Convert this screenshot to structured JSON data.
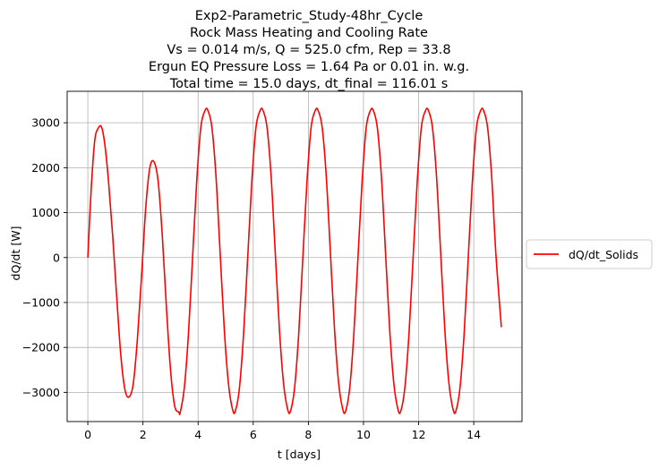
{
  "colors": {
    "series": "#ff0000",
    "grid": "#b0b0b0",
    "axis": "#000000"
  },
  "chart_data": {
    "type": "line",
    "title": [
      "Exp2-Parametric_Study-48hr_Cycle",
      "Rock Mass Heating and Cooling Rate",
      "Vs = 0.014 m/s, Q = 525.0 cfm, Rep = 33.8",
      "Ergun EQ Pressure Loss = 1.64 Pa or 0.01 in. w.g.",
      "Total time = 15.0 days, dt_final = 116.01 s"
    ],
    "xlabel": "t [days]",
    "ylabel": "dQ/dt [W]",
    "xlim": [
      -0.75,
      15.75
    ],
    "ylim": [
      -3650,
      3700
    ],
    "xticks": [
      0,
      2,
      4,
      6,
      8,
      10,
      12,
      14
    ],
    "yticks": [
      -3000,
      -2000,
      -1000,
      0,
      1000,
      2000,
      3000
    ],
    "grid": true,
    "legend": {
      "placement": "outside-right",
      "entries": [
        "dQ/dt_Solids"
      ]
    },
    "series": [
      {
        "name": "dQ/dt_Solids",
        "color": "#ff0000",
        "x": [
          0,
          0.12,
          0.25,
          0.38,
          0.5,
          0.62,
          0.75,
          0.9,
          1.05,
          1.2,
          1.35,
          1.5,
          1.65,
          1.8,
          1.95,
          2.1,
          2.25,
          2.4,
          2.55,
          2.7,
          2.85,
          3.0,
          3.15,
          3.3,
          3.35,
          3.5,
          3.65,
          3.8,
          3.95,
          4.1,
          4.25,
          4.35,
          4.5,
          4.65,
          4.8,
          4.95,
          5.1,
          5.25,
          5.35,
          5.5,
          5.65,
          5.8,
          5.95,
          6.1,
          6.25,
          6.35,
          6.5,
          6.65,
          6.8,
          6.95,
          7.1,
          7.25,
          7.35,
          7.5,
          7.65,
          7.8,
          7.95,
          8.1,
          8.25,
          8.35,
          8.5,
          8.65,
          8.8,
          8.95,
          9.1,
          9.25,
          9.35,
          9.5,
          9.65,
          9.8,
          9.95,
          10.1,
          10.25,
          10.35,
          10.5,
          10.65,
          10.8,
          10.95,
          11.1,
          11.25,
          11.35,
          11.5,
          11.65,
          11.8,
          11.95,
          12.1,
          12.25,
          12.35,
          12.5,
          12.65,
          12.8,
          12.95,
          13.1,
          13.25,
          13.35,
          13.5,
          13.65,
          13.8,
          13.95,
          14.1,
          14.25,
          14.35,
          14.5,
          14.65,
          14.8,
          15.0
        ],
        "y": [
          0,
          1500,
          2600,
          2880,
          2900,
          2500,
          1700,
          500,
          -900,
          -2200,
          -2950,
          -3100,
          -2800,
          -1800,
          -400,
          1100,
          2000,
          2130,
          1700,
          500,
          -1100,
          -2500,
          -3300,
          -3440,
          -3450,
          -2900,
          -1700,
          0,
          1700,
          2900,
          3270,
          3280,
          2900,
          1800,
          100,
          -1600,
          -2800,
          -3380,
          -3420,
          -2900,
          -1700,
          0,
          1700,
          2900,
          3270,
          3280,
          2900,
          1800,
          100,
          -1600,
          -2800,
          -3380,
          -3420,
          -2900,
          -1700,
          0,
          1700,
          2900,
          3270,
          3280,
          2900,
          1800,
          100,
          -1600,
          -2800,
          -3380,
          -3420,
          -2900,
          -1700,
          0,
          1700,
          2900,
          3270,
          3280,
          2900,
          1800,
          100,
          -1600,
          -2800,
          -3380,
          -3420,
          -2900,
          -1700,
          0,
          1700,
          2900,
          3270,
          3280,
          2900,
          1800,
          100,
          -1600,
          -2800,
          -3380,
          -3420,
          -2900,
          -1700,
          0,
          1700,
          2900,
          3270,
          3280,
          2900,
          1800,
          100,
          -1550
        ]
      }
    ]
  }
}
